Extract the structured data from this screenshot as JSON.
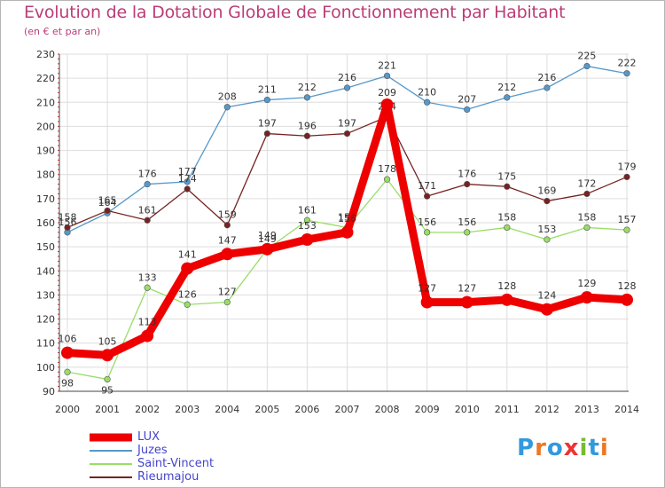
{
  "title": "Evolution de la Dotation Globale de Fonctionnement par Habitant",
  "subtitle": "(en € et par an)",
  "logo": "Proxiti",
  "colors": {
    "LUX": "#ee0000",
    "Juzes": "#5599cc",
    "Saint-Vincent": "#99dd66",
    "Rieumajou": "#772222",
    "title": "#bb3d77",
    "grid": "#dddddd"
  },
  "chart_data": {
    "type": "line",
    "title": "Evolution de la Dotation Globale de Fonctionnement par Habitant",
    "subtitle": "(en € et par an)",
    "xlabel": "",
    "ylabel": "",
    "ylim": [
      90,
      230
    ],
    "yticks": [
      90,
      100,
      110,
      120,
      130,
      140,
      150,
      160,
      170,
      180,
      190,
      200,
      210,
      220,
      230
    ],
    "grid": true,
    "legend": "bottom-left",
    "categories": [
      "2000",
      "2001",
      "2002",
      "2003",
      "2004",
      "2005",
      "2006",
      "2007",
      "2008",
      "2009",
      "2010",
      "2011",
      "2012",
      "2013",
      "2014"
    ],
    "series": [
      {
        "name": "Juzes",
        "color": "#5599cc",
        "values": [
          156,
          164,
          176,
          177,
          208,
          211,
          212,
          216,
          221,
          210,
          207,
          212,
          216,
          225,
          222
        ]
      },
      {
        "name": "Saint-Vincent",
        "color": "#99dd66",
        "values": [
          98,
          95,
          133,
          126,
          127,
          149,
          161,
          158,
          178,
          156,
          156,
          158,
          153,
          158,
          157
        ]
      },
      {
        "name": "Rieumajou",
        "color": "#772222",
        "values": [
          158,
          165,
          161,
          174,
          159,
          197,
          196,
          197,
          204,
          171,
          176,
          175,
          169,
          172,
          179
        ]
      },
      {
        "name": "LUX",
        "color": "#ee0000",
        "values": [
          106,
          105,
          113,
          141,
          147,
          149,
          153,
          156,
          209,
          127,
          127,
          128,
          124,
          129,
          128
        ]
      }
    ]
  }
}
